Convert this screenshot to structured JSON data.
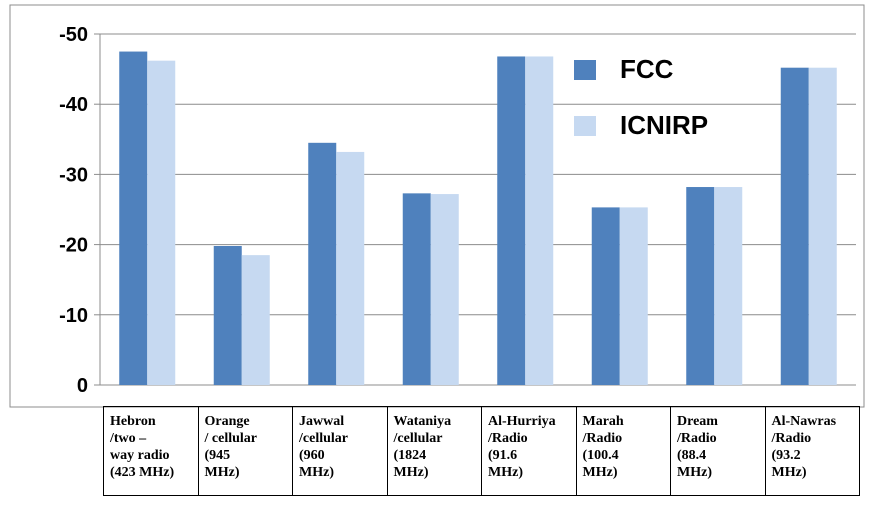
{
  "chart_data": {
    "type": "bar",
    "title": "",
    "xlabel": "",
    "ylabel": "",
    "ylim": [
      0,
      -50
    ],
    "yticks": [
      "-50",
      "-40",
      "-30",
      "-20",
      "-10",
      "0"
    ],
    "grid": "horizontal",
    "legend_position": "top-right",
    "categories": [
      "Hebron\n/two –\nway radio\n(423 MHz)",
      "Orange\n/ cellular\n(945\nMHz)",
      "Jawwal\n/cellular\n(960\nMHz)",
      "Wataniya\n/cellular\n(1824\nMHz)",
      "Al-Hurriya\n/Radio\n (91.6\nMHz)",
      "Marah\n/Radio\n(100.4\nMHz)",
      "Dream\n/Radio\n(88.4\nMHz)",
      "Al-Nawras\n/Radio\n(93.2\n MHz)"
    ],
    "series": [
      {
        "name": "FCC",
        "color": "#4f81bd",
        "values": [
          -47.5,
          -19.8,
          -34.5,
          -27.3,
          -46.8,
          -25.3,
          -28.2,
          -45.2
        ]
      },
      {
        "name": "ICNIRP",
        "color": "#c6d9f1",
        "values": [
          -46.2,
          -18.5,
          -33.2,
          -27.2,
          -46.8,
          -25.3,
          -28.2,
          -45.2
        ]
      }
    ]
  }
}
